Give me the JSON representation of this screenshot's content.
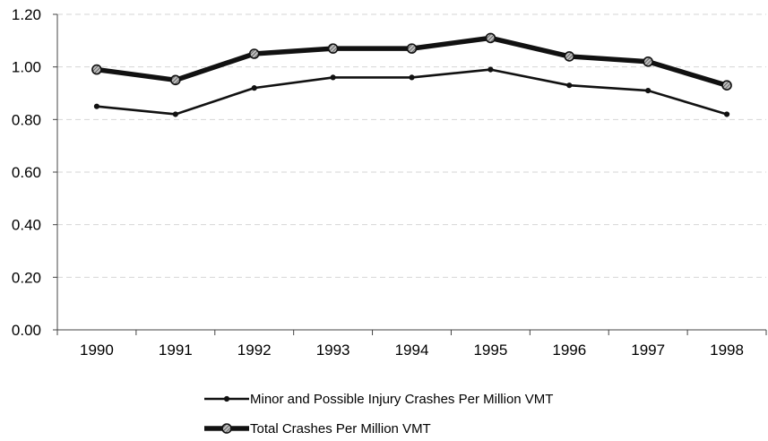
{
  "chart_data": {
    "type": "line",
    "title": "",
    "xlabel": "",
    "ylabel": "",
    "categories": [
      "1990",
      "1991",
      "1992",
      "1993",
      "1994",
      "1995",
      "1996",
      "1997",
      "1998"
    ],
    "ylim": [
      0,
      1.2
    ],
    "yticks": [
      "0.00",
      "0.20",
      "0.40",
      "0.60",
      "0.80",
      "1.00",
      "1.20"
    ],
    "grid": true,
    "legend_position": "bottom",
    "series": [
      {
        "name": "Minor and Possible Injury Crashes Per Million VMT",
        "values": [
          0.85,
          0.82,
          0.92,
          0.96,
          0.96,
          0.99,
          0.93,
          0.91,
          0.82
        ],
        "color": "#111111",
        "marker": "small-dot"
      },
      {
        "name": "Total Crashes Per Million VMT",
        "values": [
          0.99,
          0.95,
          1.05,
          1.07,
          1.07,
          1.11,
          1.04,
          1.02,
          0.93
        ],
        "color": "#111111",
        "marker": "hatched-circle"
      }
    ]
  }
}
